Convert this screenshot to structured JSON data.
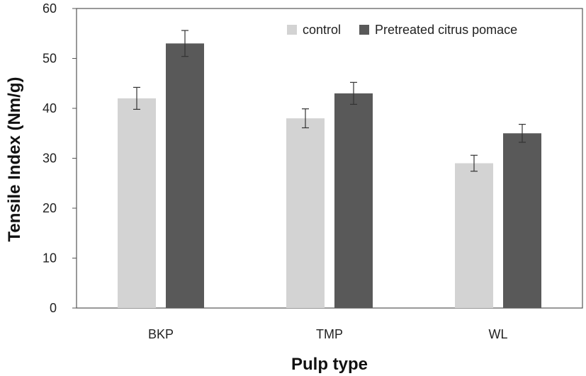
{
  "chart_data": {
    "type": "bar",
    "title": "",
    "xlabel": "Pulp type",
    "ylabel": "Tensile Index (Nm/g)",
    "categories": [
      "BKP",
      "TMP",
      "WL"
    ],
    "ylim": [
      0,
      60
    ],
    "yticks": [
      0,
      10,
      20,
      30,
      40,
      50,
      60
    ],
    "grid": false,
    "legend_position": "top-right",
    "series": [
      {
        "name": "control",
        "color": "#d3d3d3",
        "values": [
          42,
          38,
          29
        ],
        "errors": [
          2.2,
          1.9,
          1.6
        ]
      },
      {
        "name": "Pretreated citrus pomace",
        "color": "#595959",
        "values": [
          53,
          43,
          35
        ],
        "errors": [
          2.6,
          2.2,
          1.8
        ]
      }
    ]
  }
}
